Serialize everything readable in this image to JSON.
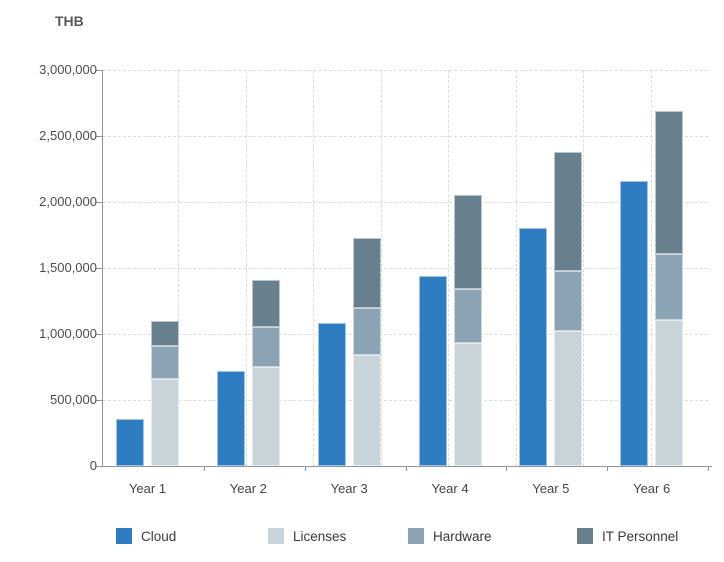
{
  "chart_data": {
    "type": "bar",
    "subtype": "grouped-with-stacked",
    "title": "",
    "ylabel": "THB",
    "xlabel": "",
    "categories": [
      "Year 1",
      "Year 2",
      "Year 3",
      "Year 4",
      "Year 5",
      "Year 6"
    ],
    "series": [
      {
        "name": "Cloud",
        "color": "#2e7dc0",
        "stack": "cloud",
        "values": [
          360000,
          720000,
          1080000,
          1440000,
          1800000,
          2160000
        ]
      },
      {
        "name": "Licenses",
        "color": "#c8d3da",
        "stack": "it",
        "values": [
          660000,
          750000,
          840000,
          930000,
          1020000,
          1110000
        ]
      },
      {
        "name": "Hardware",
        "color": "#8ba3b2",
        "stack": "it",
        "values": [
          250000,
          300000,
          360000,
          410000,
          460000,
          500000
        ]
      },
      {
        "name": "IT Personnel",
        "color": "#687f8e",
        "stack": "it",
        "values": [
          190000,
          360000,
          530000,
          710000,
          900000,
          1080000
        ]
      }
    ],
    "stacked_totals": [
      1100000,
      1410000,
      1730000,
      2050000,
      2380000,
      2690000
    ],
    "ylim": [
      0,
      3000000
    ],
    "ytick_step": 500000,
    "y_axis": {
      "tick_labels_top_to_bottom": [
        "3,000,000",
        "2,500,000",
        "2,000,000",
        "1,500,000",
        "1,000,000",
        "500,000",
        "0"
      ]
    },
    "grid": {
      "horizontal": "dashed",
      "vertical": "dashed"
    },
    "legend_position": "bottom"
  }
}
